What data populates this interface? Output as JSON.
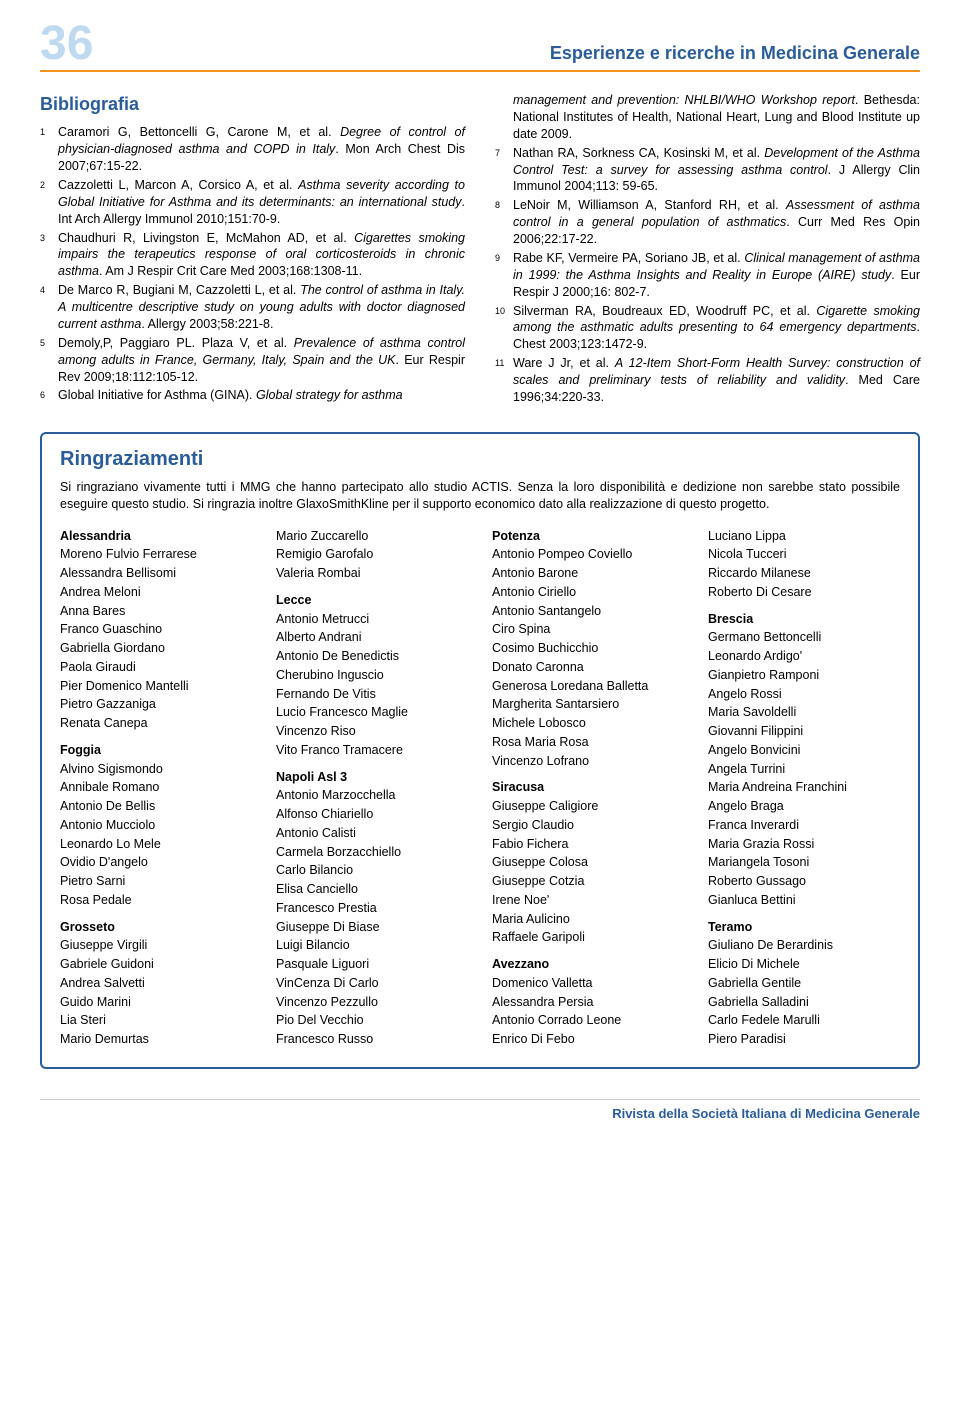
{
  "page_number": "36",
  "header_title": "Esperienze e ricerche in Medicina Generale",
  "bibliography_title": "Bibliografia",
  "bib_left": [
    {
      "n": "1",
      "authors": "Caramori G, Bettoncelli G, Carone M, et al. ",
      "title": "Degree of control of physician-diagnosed asthma and COPD in Italy",
      "rest": ". Mon Arch Chest Dis 2007;67:15-22."
    },
    {
      "n": "2",
      "authors": "Cazzoletti L, Marcon A, Corsico A, et al. ",
      "title": "Asthma severity according to Global Initiative for Asthma and its determinants: an international study",
      "rest": ". Int Arch Allergy Immunol 2010;151:70-9."
    },
    {
      "n": "3",
      "authors": "Chaudhuri R, Livingston E, McMahon AD, et al. ",
      "title": "Cigarettes smoking impairs the terapeutics response of oral corticosteroids in chronic asthma",
      "rest": ". Am J Respir Crit Care Med 2003;168:1308-11."
    },
    {
      "n": "4",
      "authors": "De Marco R, Bugiani M, Cazzoletti L, et al. ",
      "title": "The control of asthma in Italy. A multicentre descriptive study on young adults with doctor diagnosed current asthma",
      "rest": ". Allergy 2003;58:221-8."
    },
    {
      "n": "5",
      "authors": "Demoly,P, Paggiaro PL. Plaza V, et al. ",
      "title": "Prevalence of asthma control among adults in France, Germany, Italy, Spain and the UK",
      "rest": ". Eur Respir Rev 2009;18:112:105-12."
    },
    {
      "n": "6",
      "authors": "Global Initiative for Asthma (GINA). ",
      "title": "Global strategy for asthma",
      "rest": ""
    }
  ],
  "bib_right": [
    {
      "n": "",
      "authors": "",
      "title": "management and prevention: NHLBI/WHO Workshop report",
      "rest": ". Bethesda: National Institutes of Health, National Heart, Lung and Blood Institute up date 2009."
    },
    {
      "n": "7",
      "authors": "Nathan RA, Sorkness CA, Kosinski M, et al. ",
      "title": "Development of the Asthma Control Test: a survey for assessing asthma control",
      "rest": ". J Allergy Clin Immunol 2004;113: 59-65."
    },
    {
      "n": "8",
      "authors": "LeNoir M, Williamson A, Stanford RH, et al. ",
      "title": "Assessment of asthma control in a general population of asthmatics",
      "rest": ". Curr Med Res Opin 2006;22:17-22."
    },
    {
      "n": "9",
      "authors": "Rabe KF, Vermeire PA, Soriano JB, et al. ",
      "title": "Clinical management of asthma in 1999: the Asthma Insights and Reality in Europe (AIRE) study",
      "rest": ". Eur Respir J 2000;16: 802-7."
    },
    {
      "n": "10",
      "authors": "Silverman RA, Boudreaux ED, Woodruff PC, et al. ",
      "title": "Cigarette smoking among the asthmatic adults presenting to 64 emergency departments",
      "rest": ". Chest 2003;123:1472-9."
    },
    {
      "n": "11",
      "authors": "Ware J Jr, et al. ",
      "title": "A 12-Item Short-Form Health Survey: construction of scales and preliminary tests of reliability and validity",
      "rest": ". Med Care 1996;34:220-33."
    }
  ],
  "ack_title": "Ringraziamenti",
  "ack_intro": "Si ringraziano vivamente tutti i MMG che hanno partecipato allo studio ACTIS. Senza la loro disponibilità e dedizione non sarebbe stato possibile eseguire questo studio. Si ringrazia inoltre GlaxoSmithKline per il supporto economico dato alla realizzazione di questo progetto.",
  "ack_columns": [
    [
      {
        "title": "Alessandria",
        "names": [
          "Moreno Fulvio Ferrarese",
          "Alessandra Bellisomi",
          "Andrea Meloni",
          "Anna Bares",
          "Franco Guaschino",
          "Gabriella Giordano",
          "Paola Giraudi",
          "Pier Domenico Mantelli",
          "Pietro Gazzaniga",
          "Renata Canepa"
        ]
      },
      {
        "title": "Foggia",
        "names": [
          "Alvino Sigismondo",
          "Annibale Romano",
          "Antonio De Bellis",
          "Antonio Mucciolo",
          "Leonardo Lo Mele",
          "Ovidio D'angelo",
          "Pietro Sarni",
          "Rosa Pedale"
        ]
      },
      {
        "title": "Grosseto",
        "names": [
          "Giuseppe Virgili",
          "Gabriele Guidoni",
          "Andrea Salvetti",
          "Guido Marini",
          "Lia Steri",
          "Mario Demurtas"
        ]
      }
    ],
    [
      {
        "title": "",
        "names": [
          "Mario Zuccarello",
          "Remigio Garofalo",
          "Valeria Rombai"
        ]
      },
      {
        "title": "Lecce",
        "names": [
          "Antonio Metrucci",
          "Alberto Andrani",
          "Antonio De Benedictis",
          "Cherubino Inguscio",
          "Fernando De Vitis",
          "Lucio Francesco Maglie",
          "Vincenzo Riso",
          "Vito Franco Tramacere"
        ]
      },
      {
        "title": "Napoli Asl 3",
        "names": [
          "Antonio Marzocchella",
          "Alfonso Chiariello",
          "Antonio Calisti",
          "Carmela Borzacchiello",
          "Carlo Bilancio",
          "Elisa Canciello",
          "Francesco Prestia",
          "Giuseppe Di Biase",
          "Luigi Bilancio",
          "Pasquale Liguori",
          "VinCenza Di Carlo",
          "Vincenzo Pezzullo",
          "Pio Del Vecchio",
          "Francesco Russo"
        ]
      }
    ],
    [
      {
        "title": "Potenza",
        "names": [
          "Antonio Pompeo Coviello",
          "Antonio Barone",
          "Antonio Ciriello",
          "Antonio Santangelo",
          "Ciro Spina",
          "Cosimo Buchicchio",
          "Donato Caronna",
          "Generosa Loredana Balletta",
          "Margherita Santarsiero",
          "Michele Lobosco",
          "Rosa Maria Rosa",
          "Vincenzo Lofrano"
        ]
      },
      {
        "title": "Siracusa",
        "names": [
          "Giuseppe Caligiore",
          "Sergio Claudio",
          "Fabio Fichera",
          "Giuseppe Colosa",
          "Giuseppe Cotzia",
          "Irene Noe'",
          "Maria Aulicino",
          "Raffaele Garipoli"
        ]
      },
      {
        "title": "Avezzano",
        "names": [
          "Domenico Valletta",
          "Alessandra Persia",
          "Antonio Corrado Leone",
          "Enrico Di Febo"
        ]
      }
    ],
    [
      {
        "title": "",
        "names": [
          "Luciano Lippa",
          "Nicola Tucceri",
          "Riccardo Milanese",
          "Roberto Di Cesare"
        ]
      },
      {
        "title": "Brescia",
        "names": [
          "Germano Bettoncelli",
          "Leonardo Ardigo'",
          "Gianpietro Ramponi",
          "Angelo Rossi",
          "Maria Savoldelli",
          "Giovanni Filippini",
          "Angelo Bonvicini",
          "Angela Turrini",
          "Maria Andreina Franchini",
          "Angelo Braga",
          "Franca Inverardi",
          "Maria Grazia Rossi",
          "Mariangela Tosoni",
          "Roberto Gussago",
          "Gianluca Bettini"
        ]
      },
      {
        "title": "Teramo",
        "names": [
          "Giuliano De Berardinis",
          "Elicio Di Michele",
          "Gabriella Gentile",
          "Gabriella Salladini",
          "Carlo Fedele Marulli",
          "Piero Paradisi"
        ]
      }
    ]
  ],
  "footer": "Rivista della Società Italiana di Medicina Generale",
  "colors": {
    "accent_blue": "#2a5c9a",
    "accent_orange": "#f7941d",
    "pale_blue": "#bfd9f1",
    "text": "#000000",
    "bg": "#ffffff"
  }
}
